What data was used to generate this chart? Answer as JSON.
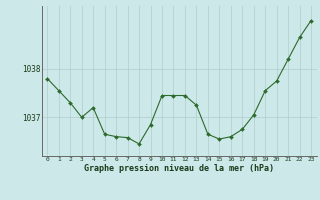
{
  "hours": [
    0,
    1,
    2,
    3,
    4,
    5,
    6,
    7,
    8,
    9,
    10,
    11,
    12,
    13,
    14,
    15,
    16,
    17,
    18,
    19,
    20,
    21,
    22,
    23
  ],
  "pressure": [
    1037.8,
    1037.55,
    1037.3,
    1037.0,
    1037.2,
    1036.65,
    1036.6,
    1036.58,
    1036.45,
    1036.85,
    1037.45,
    1037.45,
    1037.45,
    1037.25,
    1036.65,
    1036.55,
    1036.6,
    1036.75,
    1037.05,
    1037.55,
    1037.75,
    1038.2,
    1038.65,
    1039.0
  ],
  "line_color": "#2d6a2d",
  "marker_color": "#2d6a2d",
  "bg_color": "#cce8e8",
  "grid_color": "#b0cccc",
  "xlabel_label": "Graphe pression niveau de la mer (hPa)",
  "ylim": [
    1036.2,
    1039.3
  ],
  "xlim": [
    -0.5,
    23.5
  ]
}
